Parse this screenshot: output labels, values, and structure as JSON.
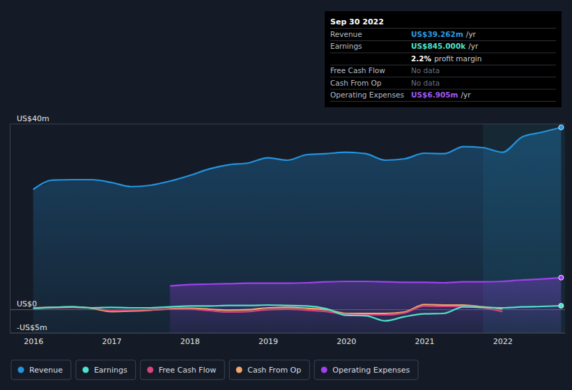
{
  "chart_data": {
    "type": "line",
    "x": [
      2016,
      2016.25,
      2016.5,
      2016.75,
      2017,
      2017.25,
      2017.5,
      2017.75,
      2018,
      2018.25,
      2018.5,
      2018.75,
      2019,
      2019.25,
      2019.5,
      2019.75,
      2020,
      2020.25,
      2020.5,
      2020.75,
      2021,
      2021.25,
      2021.5,
      2021.75,
      2022,
      2022.25,
      2022.5,
      2022.75
    ],
    "series": [
      {
        "name": "Revenue",
        "color": "#2394df",
        "type": "area",
        "marker": "end",
        "values": [
          25.9,
          27.9,
          28.0,
          28.0,
          27.4,
          26.5,
          26.8,
          27.7,
          28.9,
          30.3,
          31.2,
          31.6,
          32.7,
          32.2,
          33.4,
          33.6,
          33.9,
          33.6,
          32.2,
          32.5,
          33.7,
          33.6,
          35.1,
          34.9,
          33.9,
          37.2,
          38.2,
          39.262
        ]
      },
      {
        "name": "Earnings",
        "color": "#4fe3c9",
        "type": "line",
        "marker": "end",
        "values": [
          0.3,
          0.5,
          0.6,
          0.4,
          0.5,
          0.4,
          0.4,
          0.6,
          0.8,
          0.8,
          0.9,
          0.9,
          1.0,
          0.9,
          0.8,
          0.2,
          -1.2,
          -1.3,
          -2.4,
          -1.5,
          -0.9,
          -0.8,
          0.6,
          0.5,
          0.4,
          0.6,
          0.7,
          0.845
        ]
      },
      {
        "name": "Free Cash Flow",
        "color": "#d6457e",
        "type": "line",
        "values": [
          0.3,
          0.4,
          0.5,
          0.4,
          -0.2,
          -0.1,
          0.0,
          0.1,
          0.1,
          -0.2,
          -0.5,
          -0.4,
          0.0,
          0.1,
          -0.1,
          -0.4,
          -1.0,
          -1.1,
          -1.1,
          -0.7,
          0.8,
          0.7,
          0.7,
          0.4,
          -0.4,
          null,
          null,
          null
        ]
      },
      {
        "name": "Cash From Op",
        "color": "#f2a86a",
        "type": "line",
        "values": [
          0.4,
          0.5,
          0.6,
          0.3,
          -0.4,
          -0.3,
          -0.1,
          0.2,
          0.3,
          0.1,
          -0.1,
          0.0,
          0.4,
          0.5,
          0.3,
          0.0,
          -0.8,
          -0.8,
          -0.8,
          -0.5,
          1.1,
          1.0,
          1.0,
          0.6,
          0.2,
          null,
          null,
          null
        ]
      },
      {
        "name": "Operating Expenses",
        "color": "#a040f0",
        "type": "area",
        "marker": "end",
        "values": [
          null,
          null,
          null,
          null,
          null,
          null,
          null,
          5.1,
          5.4,
          5.5,
          5.6,
          5.7,
          5.7,
          5.7,
          5.8,
          6.0,
          6.1,
          6.1,
          6.0,
          5.9,
          5.9,
          5.8,
          6.0,
          6.0,
          6.1,
          6.4,
          6.6,
          6.905
        ]
      }
    ],
    "xlim": [
      2015.7,
      2022.8
    ],
    "xticks": [
      2016,
      2017,
      2018,
      2019,
      2020,
      2021,
      2022
    ],
    "ylim": [
      -5,
      40
    ],
    "yticks": [
      {
        "value": -5,
        "label": "-US$5m"
      },
      {
        "value": 0,
        "label": "US$0"
      },
      {
        "value": 40,
        "label": "US$40m"
      }
    ],
    "grid": true,
    "legend": "bottom-left",
    "tooltip": {
      "title": "Sep 30 2022",
      "rows": [
        {
          "label": "Revenue",
          "value": "US$39.262m",
          "unit": "/yr",
          "color": "#2d9be0"
        },
        {
          "label": "Earnings",
          "value": "US$845.000k",
          "unit": "/yr",
          "color": "#4fe3c9",
          "margin": "2.2%",
          "margin_label": "profit margin"
        },
        {
          "label": "Free Cash Flow",
          "value": "No data"
        },
        {
          "label": "Cash From Op",
          "value": "No data"
        },
        {
          "label": "Operating Expenses",
          "value": "US$6.905m",
          "unit": "/yr",
          "color": "#a258f0"
        }
      ]
    }
  }
}
